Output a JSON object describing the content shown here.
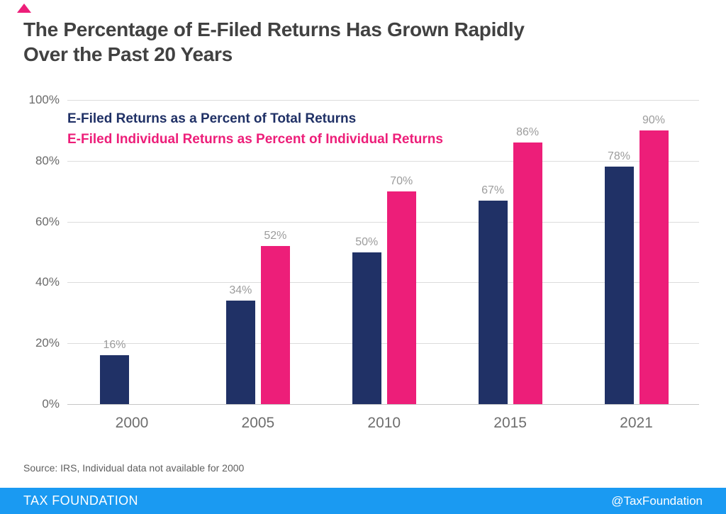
{
  "decor": {
    "triangle_color": "#ED1E79"
  },
  "title": {
    "text": "The Percentage of E-Filed Returns Has Grown Rapidly Over the Past 20 Years",
    "lines": [
      "The Percentage of E-Filed Returns Has Grown Rapidly",
      "Over the Past 20 Years"
    ],
    "color": "#414141"
  },
  "legend": [
    {
      "label": "E-Filed Returns as a Percent of Total Returns",
      "color": "#203166"
    },
    {
      "label": "E-Filed Individual Returns as Percent of Individual Returns",
      "color": "#ED1E79"
    }
  ],
  "chart_data": {
    "type": "bar",
    "categories": [
      "2000",
      "2005",
      "2010",
      "2015",
      "2021"
    ],
    "series": [
      {
        "name": "E-Filed Returns as a Percent of Total Returns",
        "color": "#203166",
        "values": [
          16,
          34,
          50,
          67,
          78
        ],
        "labels": [
          "16%",
          "34%",
          "50%",
          "67%",
          "78%"
        ]
      },
      {
        "name": "E-Filed Individual Returns as Percent of Individual Returns",
        "color": "#ED1E79",
        "values": [
          null,
          52,
          70,
          86,
          90
        ],
        "labels": [
          null,
          "52%",
          "70%",
          "86%",
          "90%"
        ]
      }
    ],
    "ylim": [
      0,
      100
    ],
    "yticks": [
      "100%",
      "80%",
      "60%",
      "40%",
      "20%",
      "0%"
    ],
    "grid": true,
    "legend_position": "top-left-inside",
    "note": "Individual data not available for 2000"
  },
  "source": {
    "text": "Source: IRS, Individual data not available for 2000"
  },
  "footer": {
    "brand": "TAX FOUNDATION",
    "handle": "@TaxFoundation",
    "bg": "#1A9AF2",
    "text_color": "#ffffff"
  }
}
